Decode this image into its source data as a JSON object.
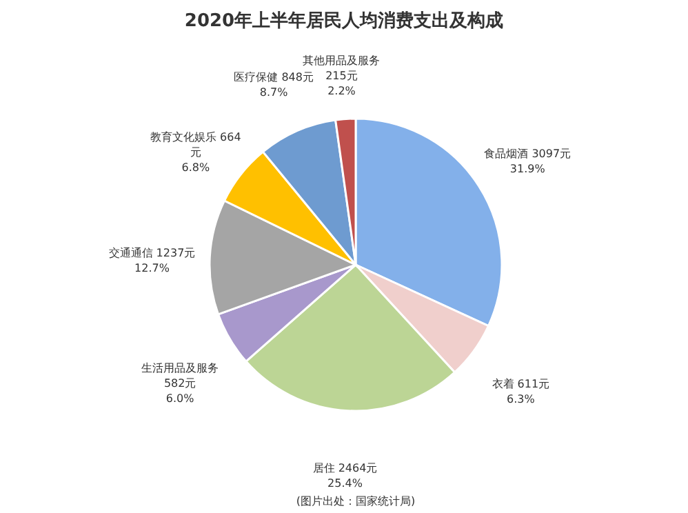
{
  "chart_data": {
    "type": "pie",
    "title": "2020年上半年居民人均消费支出及构成",
    "categories": [
      "食品烟酒",
      "衣着",
      "居住",
      "生活用品及服务",
      "交通通信",
      "教育文化娱乐",
      "医疗保健",
      "其他用品及服务"
    ],
    "values": [
      3097,
      611,
      2464,
      582,
      1237,
      664,
      848,
      215
    ],
    "colors": [
      "#83b0ea",
      "#f0cfcc",
      "#bcd595",
      "#a898cc",
      "#a5a5a5",
      "#ffc000",
      "#6e9bd0",
      "#c0504d"
    ],
    "value_labels": [
      "3097元\n31.9%",
      "611元\n6.3%",
      "2464元\n25.4%",
      "582元\n6.0%",
      "1237元\n12.7%",
      "664\n元\n6.8%",
      "848元\n8.7%",
      "215元\n2.2%"
    ],
    "annotations": [
      "(图片出处：国家统计局)"
    ],
    "legend": false
  }
}
